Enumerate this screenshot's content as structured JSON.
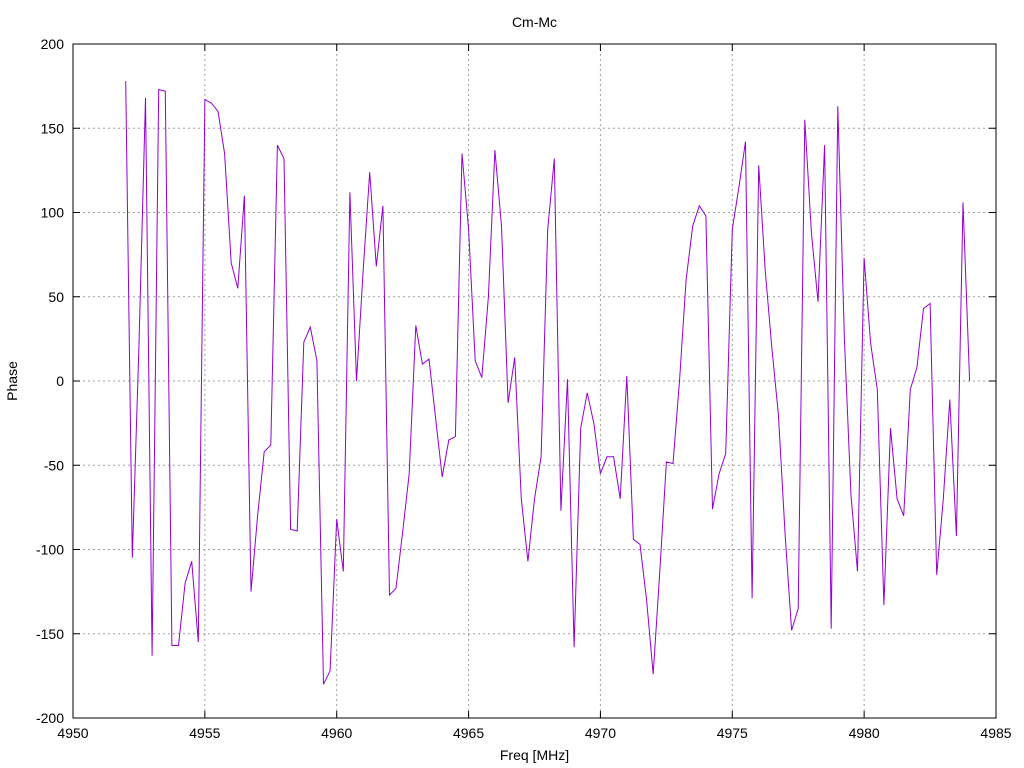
{
  "chart_data": {
    "type": "line",
    "title": "Cm-Mc",
    "xlabel": "Freq [MHz]",
    "ylabel": "Phase",
    "xlim": [
      4950,
      4985
    ],
    "ylim": [
      -200,
      200
    ],
    "xticks": [
      4950,
      4955,
      4960,
      4965,
      4970,
      4975,
      4980,
      4985
    ],
    "yticks": [
      -200,
      -150,
      -100,
      -50,
      0,
      50,
      100,
      150,
      200
    ],
    "grid": true,
    "series": [
      {
        "color": "#9400d3",
        "x": [
          4952.0,
          4952.25,
          4952.5,
          4952.75,
          4953.0,
          4953.25,
          4953.5,
          4953.75,
          4954.0,
          4954.25,
          4954.5,
          4954.75,
          4955.0,
          4955.25,
          4955.5,
          4955.75,
          4956.0,
          4956.25,
          4956.5,
          4956.75,
          4957.0,
          4957.25,
          4957.5,
          4957.75,
          4958.0,
          4958.25,
          4958.5,
          4958.75,
          4959.0,
          4959.25,
          4959.5,
          4959.75,
          4960.0,
          4960.25,
          4960.5,
          4960.75,
          4961.0,
          4961.25,
          4961.5,
          4961.75,
          4962.0,
          4962.25,
          4962.5,
          4962.75,
          4963.0,
          4963.25,
          4963.5,
          4963.75,
          4964.0,
          4964.25,
          4964.5,
          4964.75,
          4965.0,
          4965.25,
          4965.5,
          4965.75,
          4966.0,
          4966.25,
          4966.5,
          4966.75,
          4967.0,
          4967.25,
          4967.5,
          4967.75,
          4968.0,
          4968.25,
          4968.5,
          4968.75,
          4969.0,
          4969.25,
          4969.5,
          4969.75,
          4970.0,
          4970.25,
          4970.5,
          4970.75,
          4971.0,
          4971.25,
          4971.5,
          4971.75,
          4972.0,
          4972.25,
          4972.5,
          4972.75,
          4973.0,
          4973.25,
          4973.5,
          4973.75,
          4974.0,
          4974.25,
          4974.5,
          4974.75,
          4975.0,
          4975.25,
          4975.5,
          4975.75,
          4976.0,
          4976.25,
          4976.5,
          4976.75,
          4977.0,
          4977.25,
          4977.5,
          4977.75,
          4978.0,
          4978.25,
          4978.5,
          4978.75,
          4979.0,
          4979.25,
          4979.5,
          4979.75,
          4980.0,
          4980.25,
          4980.5,
          4980.75,
          4981.0,
          4981.25,
          4981.5,
          4981.75,
          4982.0,
          4982.25,
          4982.5,
          4982.75,
          4983.0,
          4983.25,
          4983.5,
          4983.75,
          4984.0
        ],
        "y": [
          178,
          -105,
          20,
          168,
          -163,
          173,
          172,
          -157,
          -157,
          -120,
          -107,
          -155,
          167,
          165,
          160,
          135,
          70,
          55,
          110,
          -125,
          -80,
          -42,
          -38,
          140,
          132,
          -88,
          -89,
          23,
          32,
          12,
          -180,
          -172,
          -82,
          -113,
          112,
          0,
          65,
          124,
          68,
          104,
          -127,
          -123,
          -90,
          -55,
          33,
          10,
          13,
          -22,
          -57,
          -35,
          -33,
          135,
          90,
          12,
          2,
          50,
          137,
          92,
          -13,
          14,
          -70,
          -107,
          -70,
          -45,
          90,
          132,
          -77,
          1,
          -158,
          -28,
          -7,
          -25,
          -55,
          -45,
          -45,
          -70,
          3,
          -94,
          -97,
          -130,
          -174,
          -113,
          -48,
          -49,
          0,
          60,
          92,
          104,
          98,
          -76,
          -55,
          -43,
          90,
          115,
          142,
          -129,
          128,
          65,
          20,
          -20,
          -90,
          -148,
          -135,
          155,
          88,
          47,
          140,
          -147,
          163,
          25,
          -68,
          -113,
          73,
          22,
          -5,
          -133,
          -28,
          -70,
          -80,
          -5,
          8,
          43,
          46,
          -115,
          -70,
          -11,
          -92,
          106,
          0
        ]
      }
    ]
  }
}
